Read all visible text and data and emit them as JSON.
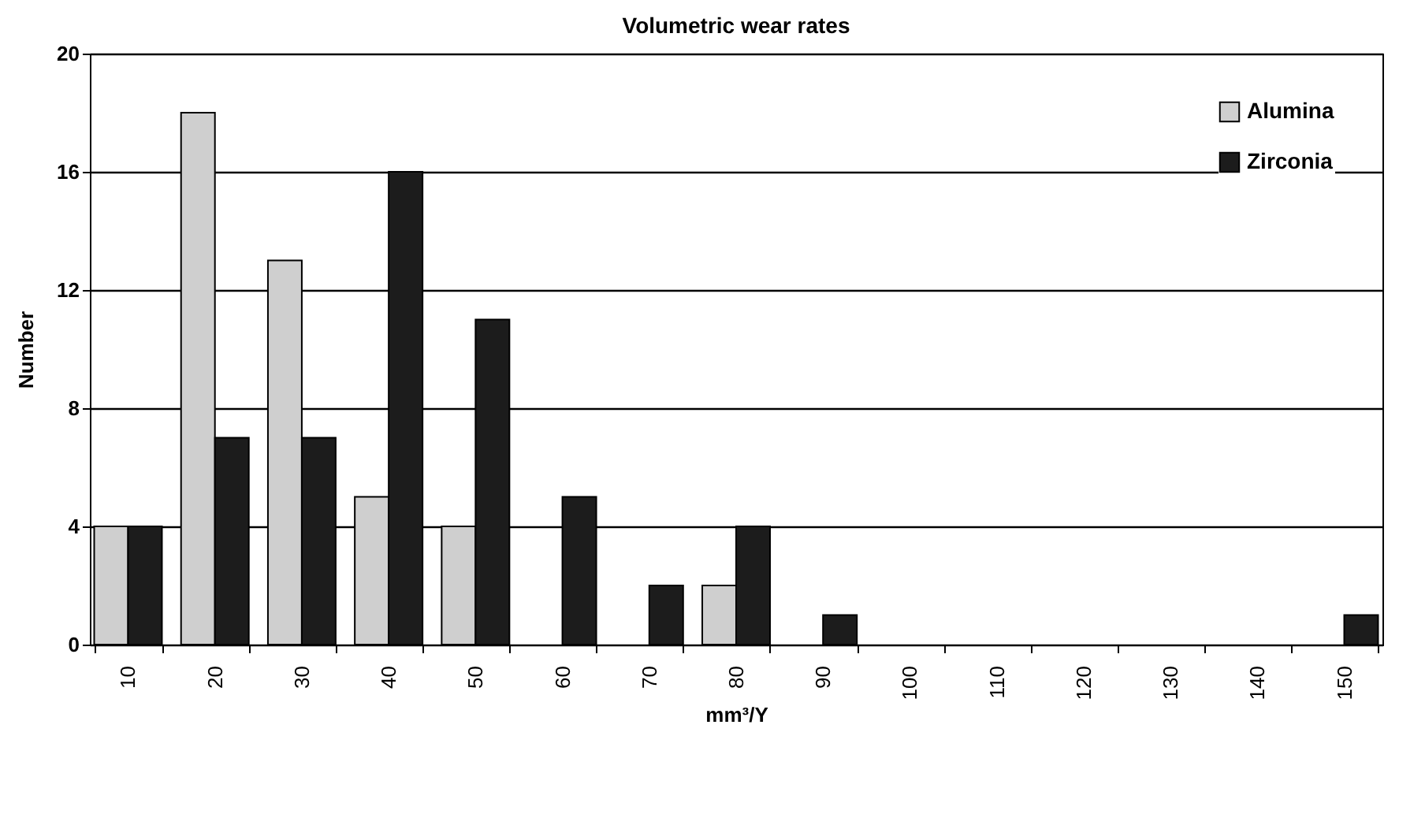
{
  "chart_data": {
    "type": "bar",
    "title": "Volumetric wear rates",
    "xlabel": "mm³/Y",
    "ylabel": "Number",
    "categories": [
      "10",
      "20",
      "30",
      "40",
      "50",
      "60",
      "70",
      "80",
      "90",
      "100",
      "110",
      "120",
      "130",
      "140",
      "150"
    ],
    "series": [
      {
        "name": "Alumina",
        "color": "#cfcfcf",
        "values": [
          4,
          18,
          13,
          5,
          4,
          null,
          null,
          2,
          null,
          null,
          null,
          null,
          null,
          null,
          null
        ]
      },
      {
        "name": "Zirconia",
        "color": "#1c1c1c",
        "values": [
          4,
          7,
          7,
          16,
          11,
          5,
          2,
          4,
          1,
          null,
          null,
          null,
          null,
          null,
          1
        ]
      }
    ],
    "ylim": [
      0,
      20
    ],
    "yticks": [
      0,
      4,
      8,
      12,
      16,
      20
    ],
    "grid": "y",
    "legend": "top right"
  }
}
